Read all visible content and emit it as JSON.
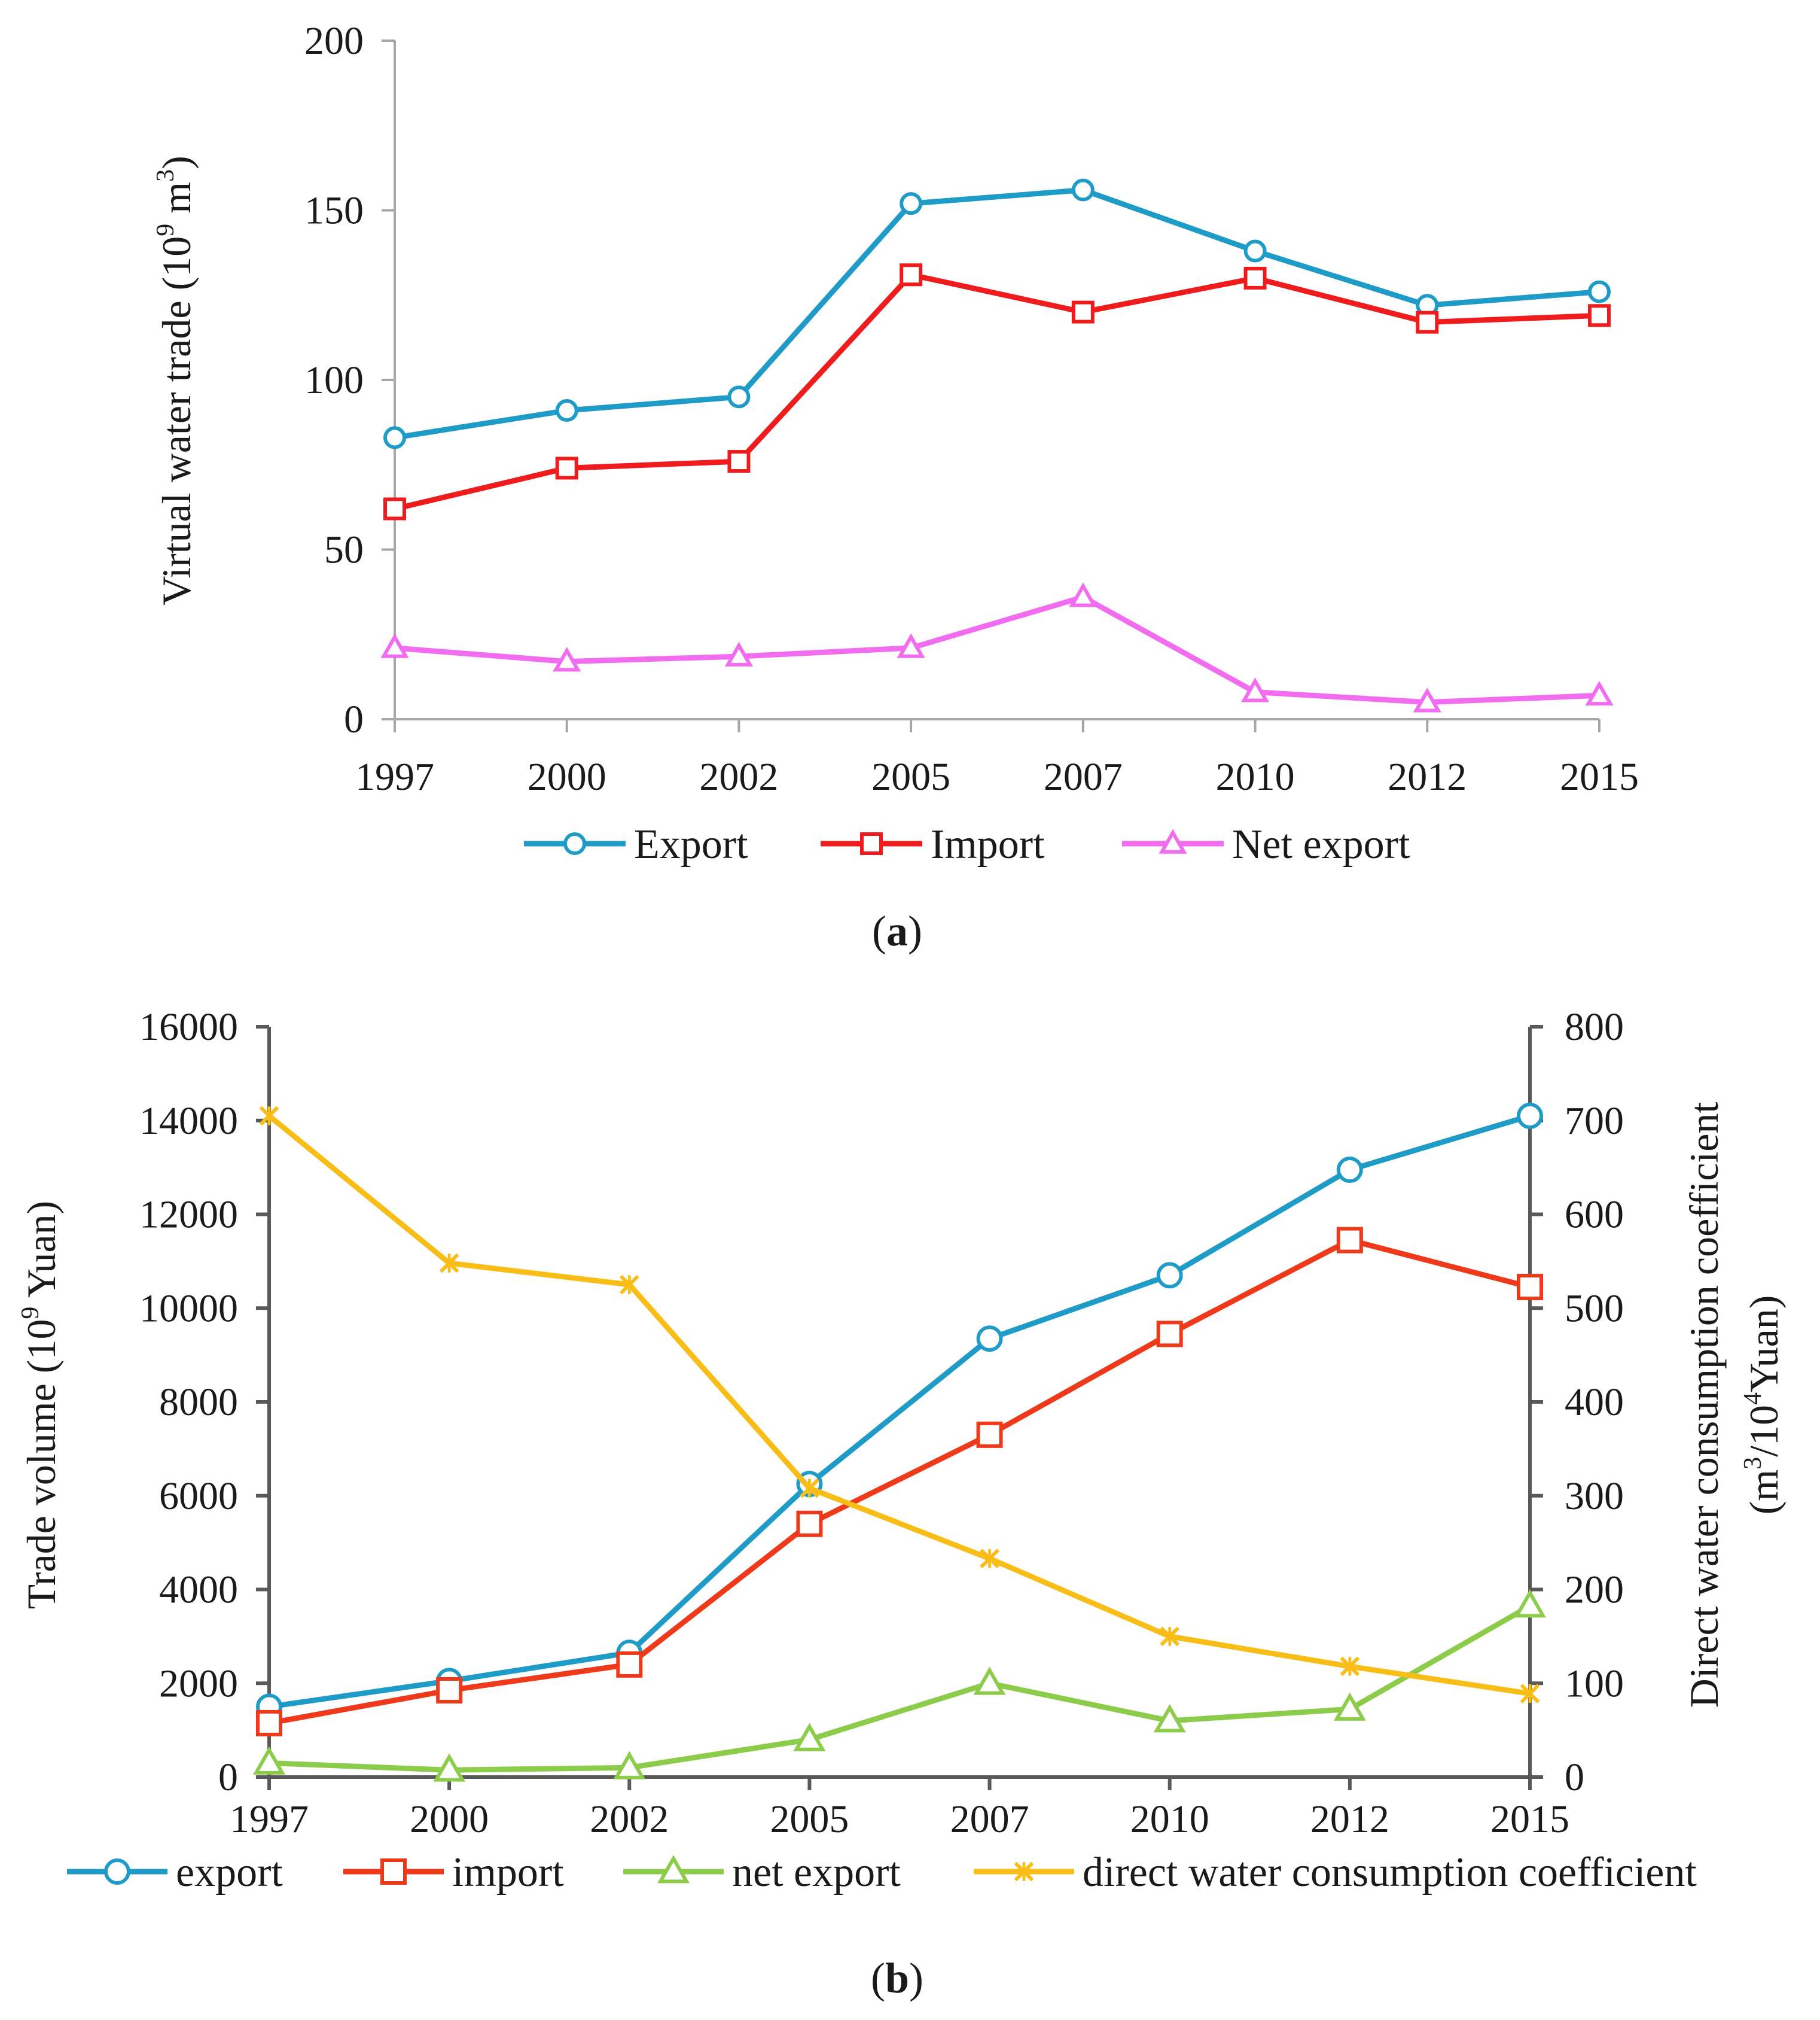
{
  "chart_data": [
    {
      "type": "line",
      "title": "",
      "panel_label": "a",
      "xlabel": "",
      "ylabel": "Virtual water trade (10",
      "ylabel_sup": "9",
      "ylabel_tail": " m",
      "ylabel_sup2": "3",
      "ylabel_close": ")",
      "categories": [
        "1997",
        "2000",
        "2002",
        "2005",
        "2007",
        "2010",
        "2012",
        "2015"
      ],
      "ylim": [
        0,
        200
      ],
      "yticks": [
        "0",
        "50",
        "100",
        "150",
        "200"
      ],
      "series": [
        {
          "name": "Export",
          "color": "#1f9bc8",
          "marker": "circle",
          "values": [
            83,
            91,
            95,
            152,
            156,
            138,
            122,
            126
          ]
        },
        {
          "name": "Import",
          "color": "#ee1c1c",
          "marker": "square",
          "values": [
            62,
            74,
            76,
            131,
            120,
            130,
            117,
            119
          ]
        },
        {
          "name": "Net export",
          "color": "#f26cf0",
          "marker": "triangle",
          "values": [
            21,
            17,
            18.5,
            21,
            36,
            8,
            5,
            7
          ]
        }
      ],
      "legend": "bottom"
    },
    {
      "type": "line",
      "title": "",
      "panel_label": "b",
      "xlabel": "",
      "ylabel": "Trade volume (10",
      "ylabel_sup": "9",
      "ylabel_tail": "  Yuan)",
      "y2label_line1": "Direct water consumption coefficient",
      "y2label_line2_a": "(m",
      "y2label_line2_sup": "3",
      "y2label_line2_b": "/10",
      "y2label_line2_sup2": "4",
      "y2label_line2_c": "Yuan)",
      "categories": [
        "1997",
        "2000",
        "2002",
        "2005",
        "2007",
        "2010",
        "2012",
        "2015"
      ],
      "ylim": [
        0,
        16000
      ],
      "yticks": [
        "0",
        "2000",
        "4000",
        "6000",
        "8000",
        "10000",
        "12000",
        "14000",
        "16000"
      ],
      "y2lim": [
        0,
        800
      ],
      "y2ticks": [
        "0",
        "100",
        "200",
        "300",
        "400",
        "500",
        "600",
        "700",
        "800"
      ],
      "series": [
        {
          "name": "export",
          "axis": "left",
          "color": "#1f9bc8",
          "marker": "circle",
          "values": [
            1500,
            2050,
            2650,
            6250,
            9350,
            10700,
            12950,
            14100
          ]
        },
        {
          "name": "import",
          "axis": "left",
          "color": "#ee3a1a",
          "marker": "square",
          "values": [
            1150,
            1850,
            2400,
            5400,
            7300,
            9450,
            11450,
            10450
          ]
        },
        {
          "name": "net export",
          "axis": "left",
          "color": "#8ccc4a",
          "marker": "triangle",
          "values": [
            300,
            150,
            200,
            800,
            2000,
            1200,
            1450,
            3650
          ]
        },
        {
          "name": "direct water consumption coefficient",
          "axis": "right",
          "color": "#f9bd18",
          "marker": "x",
          "values": [
            705,
            548,
            525,
            308,
            233,
            150,
            118,
            89
          ]
        }
      ],
      "legend": "bottom"
    }
  ]
}
